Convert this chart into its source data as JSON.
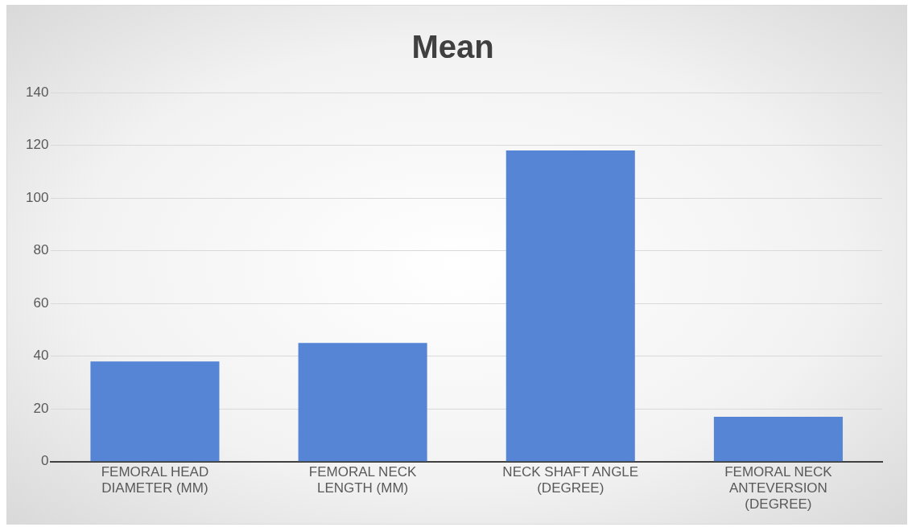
{
  "chart_data": {
    "type": "bar",
    "title": "Mean",
    "categories": [
      "FEMORAL HEAD DIAMETER (MM)",
      "FEMORAL NECK LENGTH (MM)",
      "NECK SHAFT ANGLE (DEGREE)",
      "FEMORAL NECK ANTEVERSION (DEGREE)"
    ],
    "values": [
      38,
      45,
      118,
      17
    ],
    "color": "#5585d4",
    "ylim": [
      0,
      140
    ],
    "yticks": [
      0,
      20,
      40,
      60,
      80,
      100,
      120,
      140
    ],
    "grid": "y",
    "legend": false
  }
}
